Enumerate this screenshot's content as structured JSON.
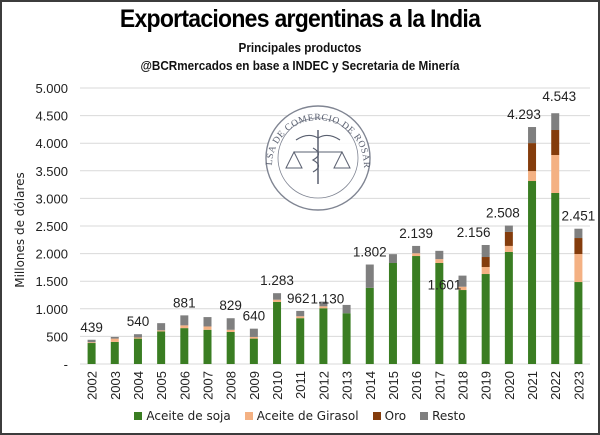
{
  "header": {
    "title": "Exportaciones argentinas a la India",
    "subtitle": "Principales productos",
    "source": "@BCRmercados en base a INDEC y Secretaria de Minería"
  },
  "watermark": {
    "text": "BOLSA DE COMERCIO DE ROSARIO",
    "icon": "caduceus-scales-seal-icon"
  },
  "chart_data": {
    "type": "bar",
    "stacked": true,
    "title": "Exportaciones argentinas a la India",
    "subtitle": "Principales productos",
    "xlabel": "",
    "ylabel": "Millones de dólares",
    "ylim": [
      0,
      5000
    ],
    "yticks": [
      0,
      500,
      1000,
      1500,
      2000,
      2500,
      3000,
      3500,
      4000,
      4500,
      5000
    ],
    "ytick_labels": [
      "-",
      "500",
      "1.000",
      "1.500",
      "2.000",
      "2.500",
      "3.000",
      "3.500",
      "4.000",
      "4.500",
      "5.000"
    ],
    "grid": true,
    "legend_position": "bottom",
    "categories": [
      "2002",
      "2003",
      "2004",
      "2005",
      "2006",
      "2007",
      "2008",
      "2009",
      "2010",
      "2011",
      "2012",
      "2013",
      "2014",
      "2015",
      "2016",
      "2017",
      "2018",
      "2019",
      "2020",
      "2021",
      "2022",
      "2023"
    ],
    "series": [
      {
        "name": "Aceite de soja",
        "color": "#3a7d22",
        "values": [
          380,
          400,
          460,
          590,
          650,
          620,
          580,
          460,
          1125,
          830,
          1010,
          920,
          1380,
          1830,
          1956,
          1830,
          1340,
          1630,
          2030,
          3315,
          3098,
          1485
        ]
      },
      {
        "name": "Aceite de Girasol",
        "color": "#f4b183",
        "values": [
          15,
          60,
          20,
          20,
          50,
          60,
          40,
          30,
          40,
          35,
          35,
          0,
          0,
          0,
          50,
          70,
          60,
          127,
          109,
          180,
          688,
          507
        ]
      },
      {
        "name": "Oro",
        "color": "#843c0c",
        "values": [
          0,
          0,
          0,
          0,
          0,
          0,
          0,
          0,
          0,
          0,
          0,
          0,
          0,
          0,
          0,
          0,
          0,
          181,
          254,
          507,
          453,
          290
        ]
      },
      {
        "name": "Resto",
        "color": "#7f7f7f",
        "values": [
          44,
          30,
          60,
          130,
          181,
          170,
          209,
          150,
          118,
          97,
          85,
          150,
          422,
          160,
          133,
          150,
          201,
          218,
          115,
          291,
          304,
          169
        ]
      }
    ],
    "data_labels": [
      {
        "category": "2002",
        "label": "439"
      },
      {
        "category": "2004",
        "label": "540"
      },
      {
        "category": "2006",
        "label": "881"
      },
      {
        "category": "2008",
        "label": "829"
      },
      {
        "category": "2009",
        "label": "640"
      },
      {
        "category": "2010",
        "label": "1.283"
      },
      {
        "category": "2011",
        "label": "962"
      },
      {
        "category": "2012",
        "label": "1.130"
      },
      {
        "category": "2014",
        "label": "1.802"
      },
      {
        "category": "2016",
        "label": "2.139"
      },
      {
        "category": "2018",
        "label": "1.601"
      },
      {
        "category": "2019",
        "label": "2.156"
      },
      {
        "category": "2020",
        "label": "2.508"
      },
      {
        "category": "2021",
        "label": "4.293"
      },
      {
        "category": "2022",
        "label": "4.543"
      },
      {
        "category": "2023",
        "label": "2.451"
      }
    ]
  }
}
